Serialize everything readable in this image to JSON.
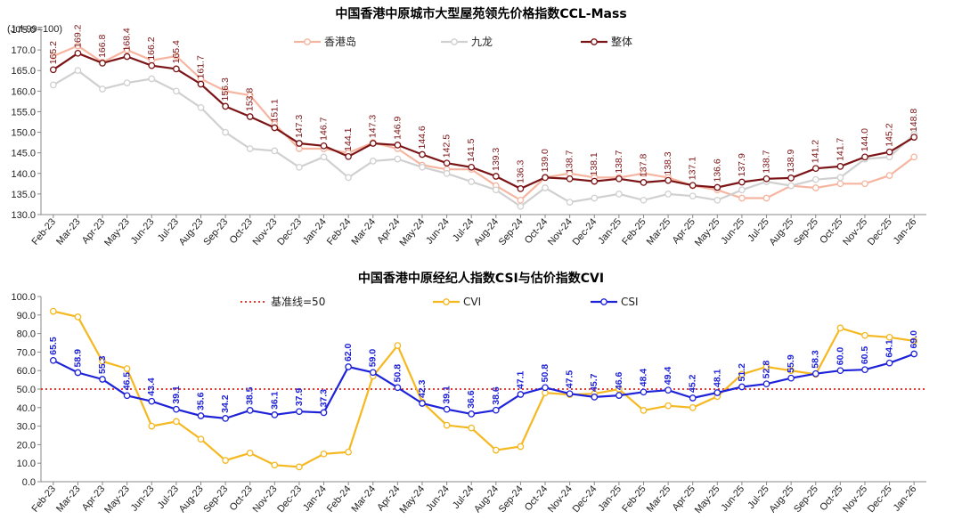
{
  "chart_data": [
    {
      "type": "line",
      "title": "中国香港中原城市大型屋苑领先价格指数CCL-Mass",
      "unit_label": "(Jul-99=100)",
      "categories": [
        "Feb-23",
        "Mar-23",
        "Apr-23",
        "May-23",
        "Jun-23",
        "Jul-23",
        "Aug-23",
        "Sep-23",
        "Oct-23",
        "Nov-23",
        "Dec-23",
        "Jan-24",
        "Feb-24",
        "Mar-24",
        "Apr-24",
        "May-24",
        "Jun-24",
        "Jul-24",
        "Aug-24",
        "Sep-24",
        "Oct-24",
        "Nov-24",
        "Dec-24",
        "Jan-25",
        "Feb-25",
        "Mar-25",
        "Apr-25",
        "May-25",
        "Jun-25",
        "Jul-25",
        "Aug-25",
        "Sep-25",
        "Oct-25",
        "Nov-25",
        "Dec-25",
        "Jan-26"
      ],
      "ylim": [
        130,
        175
      ],
      "yticks": [
        "130.0",
        "135.0",
        "140.0",
        "145.0",
        "150.0",
        "155.0",
        "160.0",
        "165.0",
        "170.0",
        "175.0"
      ],
      "grid": false,
      "legend_position": "top",
      "series": [
        {
          "name": "香港岛",
          "color": "#F5B5A0",
          "labeled": false,
          "values": [
            168.5,
            171.0,
            167.0,
            170.0,
            167.5,
            168.5,
            163.0,
            160.0,
            159.0,
            152.0,
            146.0,
            146.0,
            145.0,
            147.5,
            146.0,
            142.0,
            141.0,
            141.0,
            137.0,
            133.5,
            139.0,
            140.0,
            139.0,
            139.0,
            140.0,
            139.0,
            137.0,
            136.0,
            134.0,
            134.0,
            137.0,
            136.5,
            137.5,
            137.5,
            139.5,
            144.0
          ]
        },
        {
          "name": "九龙",
          "color": "#D0D0D0",
          "labeled": false,
          "values": [
            161.5,
            165.0,
            160.5,
            162.0,
            163.0,
            160.0,
            156.0,
            150.0,
            146.0,
            145.5,
            141.5,
            144.0,
            139.0,
            143.0,
            143.5,
            141.5,
            140.0,
            138.0,
            136.0,
            132.0,
            136.5,
            133.0,
            134.0,
            135.0,
            133.5,
            135.0,
            134.5,
            133.5,
            136.0,
            138.0,
            137.0,
            138.5,
            139.0,
            143.5,
            144.0,
            149.5
          ]
        },
        {
          "name": "整体",
          "color": "#7B1416",
          "labeled": true,
          "values": [
            165.2,
            169.2,
            166.8,
            168.4,
            166.2,
            165.4,
            161.7,
            156.3,
            153.8,
            151.1,
            147.3,
            146.7,
            144.1,
            147.3,
            146.9,
            144.6,
            142.5,
            141.5,
            139.3,
            136.3,
            139.0,
            138.7,
            138.1,
            138.7,
            137.8,
            138.3,
            137.1,
            136.6,
            137.9,
            138.7,
            138.9,
            141.2,
            141.7,
            144.0,
            145.2,
            148.8
          ],
          "labels": [
            "165.2",
            "169.2",
            "166.8",
            "168.4",
            "166.2",
            "165.4",
            "161.7",
            "156.3",
            "153.8",
            "151.1",
            "147.3",
            "146.7",
            "144.1",
            "147.3",
            "146.9",
            "144.6",
            "142.5",
            "141.5",
            "139.3",
            "136.3",
            "139.0",
            "138.7",
            "138.1",
            "138.7",
            "137.8",
            "138.3",
            "137.1",
            "136.6",
            "137.9",
            "138.7",
            "138.9",
            "141.2",
            "141.7",
            "144.0",
            "145.2",
            "148.8"
          ]
        }
      ]
    },
    {
      "type": "line",
      "title": "中国香港中原经纪人指数CSI与估价指数CVI",
      "categories": [
        "Feb-23",
        "Mar-23",
        "Apr-23",
        "May-23",
        "Jun-23",
        "Jul-23",
        "Aug-23",
        "Sep-23",
        "Oct-23",
        "Nov-23",
        "Dec-23",
        "Jan-24",
        "Feb-24",
        "Mar-24",
        "Apr-24",
        "May-24",
        "Jun-24",
        "Jul-24",
        "Aug-24",
        "Sep-24",
        "Oct-24",
        "Nov-24",
        "Dec-24",
        "Jan-25",
        "Feb-25",
        "Mar-25",
        "Apr-25",
        "May-25",
        "Jun-25",
        "Jul-25",
        "Aug-25",
        "Sep-25",
        "Oct-25",
        "Nov-25",
        "Dec-25",
        "Jan-26"
      ],
      "ylim": [
        0,
        100
      ],
      "yticks": [
        "0.0",
        "10.0",
        "20.0",
        "30.0",
        "40.0",
        "50.0",
        "60.0",
        "70.0",
        "80.0",
        "90.0",
        "100.0"
      ],
      "grid": false,
      "legend_position": "top",
      "baseline": {
        "name": "基准线=50",
        "value": 50,
        "color": "#E0201A"
      },
      "series": [
        {
          "name": "CVI",
          "color": "#F5B820",
          "labeled": false,
          "values": [
            92.0,
            89.0,
            65.0,
            61.0,
            30.0,
            32.5,
            23.0,
            11.5,
            15.5,
            9.0,
            8.0,
            15.0,
            16.0,
            57.0,
            73.5,
            43.0,
            30.5,
            29.0,
            17.0,
            19.0,
            48.0,
            47.0,
            47.5,
            50.0,
            38.5,
            41.0,
            40.0,
            46.0,
            58.0,
            62.0,
            60.0,
            58.0,
            83.0,
            79.0,
            78.0,
            76.0
          ]
        },
        {
          "name": "CSI",
          "color": "#1E22D8",
          "labeled": true,
          "values": [
            65.5,
            58.9,
            55.3,
            46.5,
            43.4,
            39.1,
            35.6,
            34.2,
            38.5,
            36.1,
            37.9,
            37.3,
            62.0,
            59.0,
            50.8,
            42.3,
            39.1,
            36.6,
            38.6,
            47.1,
            50.8,
            47.5,
            45.7,
            46.6,
            48.4,
            49.4,
            45.2,
            48.1,
            51.2,
            52.8,
            55.9,
            58.3,
            60.0,
            60.5,
            64.1,
            69.0
          ],
          "labels": [
            "65.5",
            "58.9",
            "55.3",
            "46.5",
            "43.4",
            "39.1",
            "35.6",
            "34.2",
            "38.5",
            "36.1",
            "37.9",
            "37.3",
            "62.0",
            "59.0",
            "50.8",
            "42.3",
            "39.1",
            "36.6",
            "38.6",
            "47.1",
            "50.8",
            "47.5",
            "45.7",
            "46.6",
            "48.4",
            "49.4",
            "45.2",
            "48.1",
            "51.2",
            "52.8",
            "55.9",
            "58.3",
            "60.0",
            "60.5",
            "64.1",
            "69.0"
          ]
        }
      ]
    }
  ]
}
